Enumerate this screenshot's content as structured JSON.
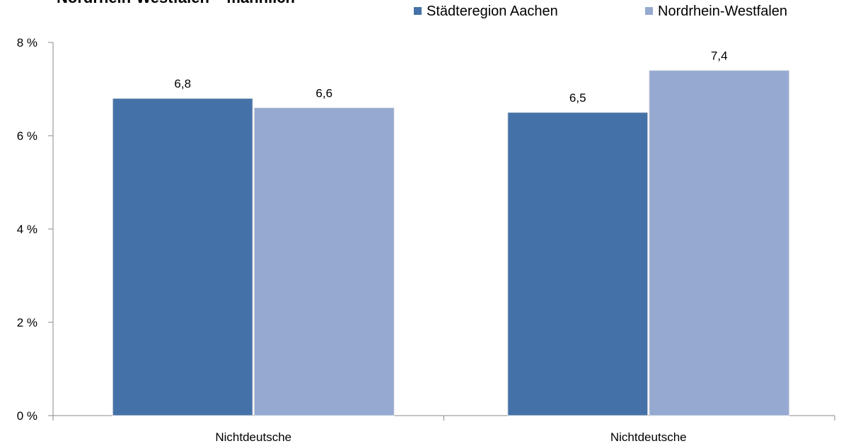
{
  "chart_data": {
    "type": "bar",
    "title": "Nordrhein-Westfalen – männlich",
    "categories": [
      "Nichtdeutsche",
      "Nichtdeutsche"
    ],
    "series": [
      {
        "name": "Städteregion Aachen",
        "color": "#4472a8",
        "values": [
          6.8,
          6.5
        ],
        "value_labels": [
          "6,8",
          "6,5"
        ]
      },
      {
        "name": "Nordrhein-Westfalen",
        "color": "#95a9d1",
        "values": [
          6.6,
          7.4
        ],
        "value_labels": [
          "6,6",
          "7,4"
        ]
      }
    ],
    "ylim": [
      0,
      8
    ],
    "yticks": [
      {
        "value": 0,
        "label": "0 %"
      },
      {
        "value": 2,
        "label": "2 %"
      },
      {
        "value": 4,
        "label": "4 %"
      },
      {
        "value": 6,
        "label": "6 %"
      },
      {
        "value": 8,
        "label": "8 %"
      }
    ],
    "grid": false,
    "legend": "top"
  }
}
